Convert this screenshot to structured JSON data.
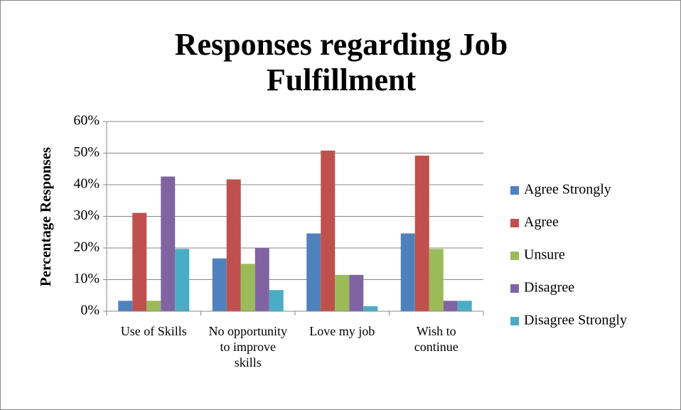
{
  "chart_data": {
    "type": "bar",
    "title": "Responses regarding Job Fulfillment",
    "y_label": "Percentage Responses",
    "categories": [
      "Use of Skills",
      "No opportunity to improve skills",
      "Love my job",
      "Wish to continue"
    ],
    "series": [
      {
        "name": "Agree Strongly",
        "color": "#4f81bd",
        "values": [
          3.3,
          16.7,
          24.6,
          24.6
        ]
      },
      {
        "name": "Agree",
        "color": "#c0504d",
        "values": [
          31.1,
          41.7,
          50.8,
          49.2
        ]
      },
      {
        "name": "Unsure",
        "color": "#9bbb59",
        "values": [
          3.3,
          15,
          11.5,
          19.7
        ]
      },
      {
        "name": "Disagree",
        "color": "#8064a2",
        "values": [
          42.6,
          20,
          11.5,
          3.3
        ]
      },
      {
        "name": "Disagree Strongly",
        "color": "#4bacc6",
        "values": [
          19.7,
          6.7,
          1.6,
          3.3
        ]
      }
    ],
    "ylim": [
      0,
      60
    ],
    "yticks": [
      {
        "value": 0,
        "label": "0%"
      },
      {
        "value": 10,
        "label": "10%"
      },
      {
        "value": 20,
        "label": "20%"
      },
      {
        "value": 30,
        "label": "30%"
      },
      {
        "value": 40,
        "label": "40%"
      },
      {
        "value": 50,
        "label": "50%"
      },
      {
        "value": 60,
        "label": "60%"
      }
    ],
    "grid": true,
    "legend": "right"
  }
}
